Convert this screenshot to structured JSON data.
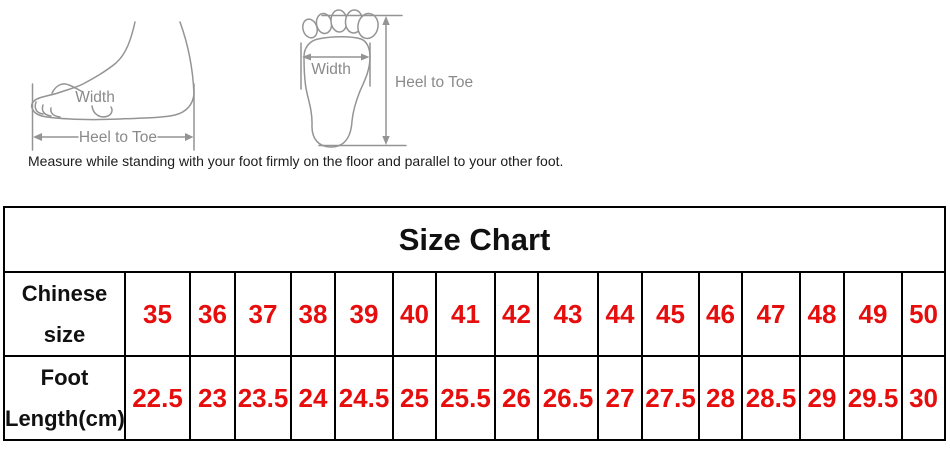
{
  "measurement_diagram": {
    "side_view": {
      "width_label": "Width",
      "length_label": "Heel to Toe"
    },
    "sole_view": {
      "width_label": "Width",
      "length_label": "Heel to Toe"
    },
    "caption": "Measure while standing with your foot firmly on the floor and parallel to your other foot."
  },
  "size_chart": {
    "title": "Size Chart",
    "row_labels": {
      "chinese_size": [
        "Chinese",
        "size"
      ],
      "foot_length": [
        "Foot",
        "Length(cm)"
      ]
    },
    "sizes": [
      "35",
      "36",
      "37",
      "38",
      "39",
      "40",
      "41",
      "42",
      "43",
      "44",
      "45",
      "46",
      "47",
      "48",
      "49",
      "50"
    ],
    "foot_length_cm": [
      "22.5",
      "23",
      "23.5",
      "24",
      "24.5",
      "25",
      "25.5",
      "26",
      "26.5",
      "27",
      "27.5",
      "28",
      "28.5",
      "29",
      "29.5",
      "30"
    ]
  },
  "colors": {
    "number_red": "#e60d0d",
    "table_border": "#000000",
    "title_black": "#111111",
    "diagram_outline_gray": "#949494",
    "diagram_label_gray": "#8a8a8a",
    "caption_color": "#1c1c1c",
    "background": "#ffffff"
  }
}
